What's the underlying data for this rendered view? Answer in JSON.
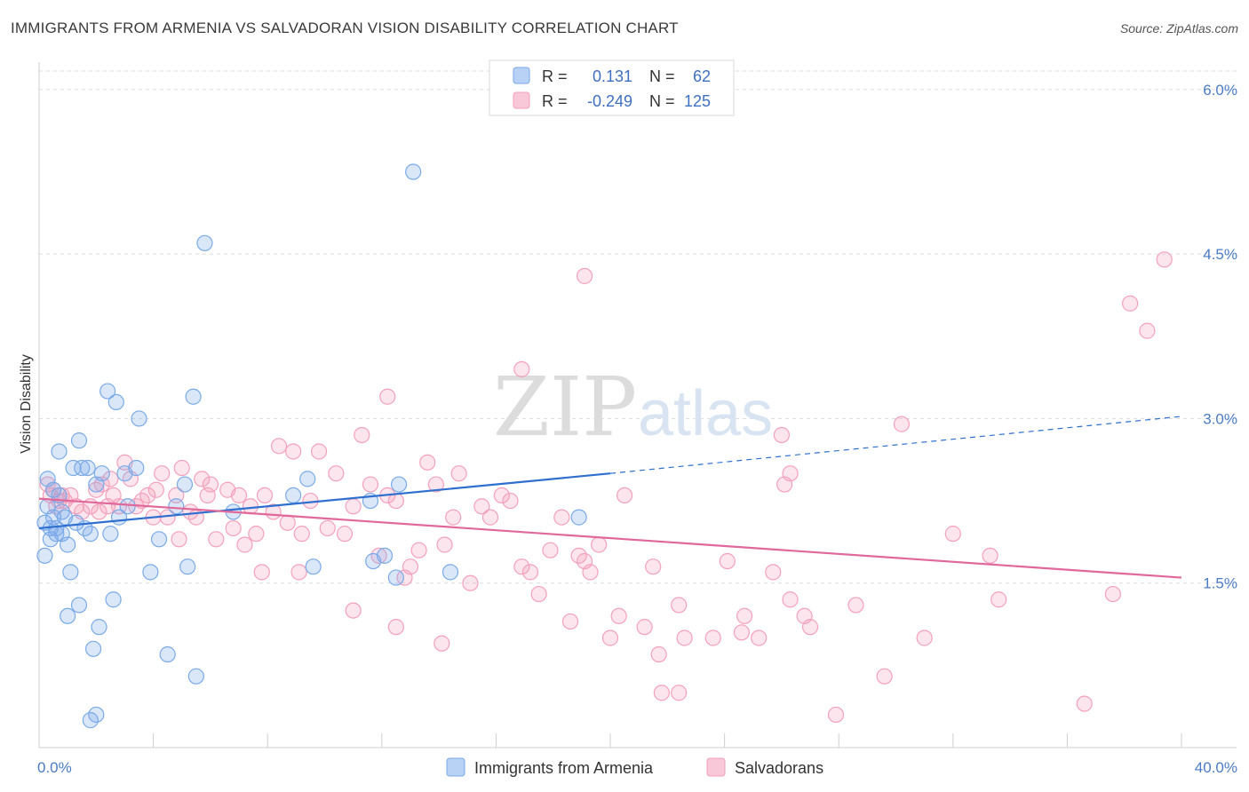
{
  "title": "IMMIGRANTS FROM ARMENIA VS SALVADORAN VISION DISABILITY CORRELATION CHART",
  "source": "Source: ZipAtlas.com",
  "watermark": {
    "part1": "ZIP",
    "part2": "atlas"
  },
  "chart_data": {
    "type": "scatter",
    "title": "IMMIGRANTS FROM ARMENIA VS SALVADORAN VISION DISABILITY CORRELATION CHART",
    "xlabel": "",
    "ylabel": "Vision Disability",
    "xlim": [
      0,
      40
    ],
    "ylim": [
      0,
      6.25
    ],
    "x_tick_labels": [
      "0.0%",
      "40.0%"
    ],
    "y_ticks": [
      1.5,
      3.0,
      4.5,
      6.0
    ],
    "y_tick_labels": [
      "1.5%",
      "3.0%",
      "4.5%",
      "6.0%"
    ],
    "grid": "horizontal dashed",
    "legend_placement": "top-center",
    "stats": [
      {
        "r_label": "R =",
        "r": "0.131",
        "n_label": "N =",
        "n": "62"
      },
      {
        "r_label": "R =",
        "r": "-0.249",
        "n_label": "N =",
        "n": "125"
      }
    ],
    "series": [
      {
        "name": "Immigrants from Armenia",
        "color": "#7aaae8",
        "line_color": "#2f6fcf",
        "trend": {
          "x0": 0,
          "y0": 2.0,
          "x1": 20,
          "y1": 2.5,
          "dash_to_x": 40,
          "dash_to_y": 3.02
        },
        "points": [
          [
            0.2,
            1.75
          ],
          [
            0.2,
            2.05
          ],
          [
            0.3,
            2.2
          ],
          [
            0.3,
            2.45
          ],
          [
            0.4,
            2.0
          ],
          [
            0.4,
            1.9
          ],
          [
            0.5,
            2.35
          ],
          [
            0.5,
            2.1
          ],
          [
            0.6,
            2.0
          ],
          [
            0.6,
            1.95
          ],
          [
            0.7,
            2.7
          ],
          [
            0.7,
            2.3
          ],
          [
            0.8,
            1.95
          ],
          [
            0.8,
            2.15
          ],
          [
            0.9,
            2.1
          ],
          [
            1.0,
            1.85
          ],
          [
            1.1,
            1.6
          ],
          [
            1.2,
            2.55
          ],
          [
            1.3,
            2.05
          ],
          [
            1.4,
            2.8
          ],
          [
            1.5,
            2.55
          ],
          [
            1.6,
            2.0
          ],
          [
            1.7,
            2.55
          ],
          [
            1.8,
            1.95
          ],
          [
            1.9,
            0.9
          ],
          [
            2.0,
            2.4
          ],
          [
            2.1,
            1.1
          ],
          [
            2.2,
            2.5
          ],
          [
            2.4,
            3.25
          ],
          [
            2.5,
            1.95
          ],
          [
            2.6,
            1.35
          ],
          [
            2.7,
            3.15
          ],
          [
            2.8,
            2.1
          ],
          [
            3.0,
            2.5
          ],
          [
            3.1,
            2.2
          ],
          [
            3.4,
            2.55
          ],
          [
            3.5,
            3.0
          ],
          [
            3.9,
            1.6
          ],
          [
            4.2,
            1.9
          ],
          [
            4.5,
            0.85
          ],
          [
            4.8,
            2.2
          ],
          [
            5.1,
            2.4
          ],
          [
            5.2,
            1.65
          ],
          [
            5.4,
            3.2
          ],
          [
            5.5,
            0.65
          ],
          [
            5.8,
            4.6
          ],
          [
            6.8,
            2.15
          ],
          [
            8.9,
            2.3
          ],
          [
            9.4,
            2.45
          ],
          [
            9.6,
            1.65
          ],
          [
            11.6,
            2.25
          ],
          [
            11.7,
            1.7
          ],
          [
            12.1,
            1.75
          ],
          [
            12.5,
            1.55
          ],
          [
            12.6,
            2.4
          ],
          [
            13.1,
            5.25
          ],
          [
            14.4,
            1.6
          ],
          [
            18.9,
            2.1
          ],
          [
            1.8,
            0.25
          ],
          [
            2.0,
            0.3
          ],
          [
            1.0,
            1.2
          ],
          [
            1.4,
            1.3
          ]
        ]
      },
      {
        "name": "Salvadorans",
        "color": "#f4a0bc",
        "line_color": "#e0689a",
        "trend": {
          "x0": 0,
          "y0": 2.27,
          "x1": 40,
          "y1": 1.55
        },
        "points": [
          [
            0.3,
            2.4
          ],
          [
            0.4,
            2.3
          ],
          [
            0.5,
            2.35
          ],
          [
            0.6,
            2.2
          ],
          [
            0.7,
            2.25
          ],
          [
            0.8,
            2.3
          ],
          [
            0.9,
            2.25
          ],
          [
            1.1,
            2.3
          ],
          [
            1.3,
            2.2
          ],
          [
            1.5,
            2.15
          ],
          [
            1.8,
            2.2
          ],
          [
            2.0,
            2.35
          ],
          [
            2.1,
            2.15
          ],
          [
            2.2,
            2.4
          ],
          [
            2.4,
            2.2
          ],
          [
            2.5,
            2.45
          ],
          [
            2.6,
            2.3
          ],
          [
            2.8,
            2.2
          ],
          [
            3.0,
            2.6
          ],
          [
            3.2,
            2.45
          ],
          [
            3.4,
            2.2
          ],
          [
            3.6,
            2.25
          ],
          [
            3.8,
            2.3
          ],
          [
            4.0,
            2.1
          ],
          [
            4.1,
            2.35
          ],
          [
            4.3,
            2.5
          ],
          [
            4.5,
            2.1
          ],
          [
            4.8,
            2.3
          ],
          [
            4.9,
            1.9
          ],
          [
            5.0,
            2.55
          ],
          [
            5.3,
            2.15
          ],
          [
            5.5,
            2.1
          ],
          [
            5.7,
            2.45
          ],
          [
            5.9,
            2.3
          ],
          [
            6.0,
            2.4
          ],
          [
            6.2,
            1.9
          ],
          [
            6.6,
            2.35
          ],
          [
            6.8,
            2.0
          ],
          [
            7.0,
            2.3
          ],
          [
            7.2,
            1.85
          ],
          [
            7.4,
            2.2
          ],
          [
            7.6,
            1.95
          ],
          [
            7.9,
            2.3
          ],
          [
            8.2,
            2.15
          ],
          [
            8.4,
            2.75
          ],
          [
            8.7,
            2.05
          ],
          [
            8.9,
            2.7
          ],
          [
            9.2,
            1.95
          ],
          [
            9.5,
            2.25
          ],
          [
            9.8,
            2.7
          ],
          [
            10.1,
            2.0
          ],
          [
            10.4,
            2.5
          ],
          [
            10.7,
            1.95
          ],
          [
            11.0,
            2.2
          ],
          [
            11.3,
            2.85
          ],
          [
            11.6,
            2.4
          ],
          [
            11.9,
            1.75
          ],
          [
            12.2,
            2.3
          ],
          [
            12.5,
            2.25
          ],
          [
            12.8,
            1.55
          ],
          [
            13.0,
            1.65
          ],
          [
            13.3,
            1.8
          ],
          [
            13.6,
            2.6
          ],
          [
            13.9,
            2.4
          ],
          [
            14.2,
            1.85
          ],
          [
            14.5,
            2.1
          ],
          [
            14.7,
            2.5
          ],
          [
            15.1,
            1.5
          ],
          [
            15.5,
            2.2
          ],
          [
            15.8,
            2.1
          ],
          [
            16.2,
            2.3
          ],
          [
            16.5,
            2.25
          ],
          [
            16.9,
            1.65
          ],
          [
            17.2,
            1.6
          ],
          [
            17.5,
            1.4
          ],
          [
            17.9,
            1.8
          ],
          [
            18.3,
            2.1
          ],
          [
            18.6,
            1.15
          ],
          [
            18.9,
            1.75
          ],
          [
            19.1,
            1.7
          ],
          [
            19.3,
            1.6
          ],
          [
            19.6,
            1.85
          ],
          [
            20.0,
            1.0
          ],
          [
            20.5,
            2.3
          ],
          [
            21.2,
            1.1
          ],
          [
            21.5,
            1.65
          ],
          [
            22.4,
            1.3
          ],
          [
            22.6,
            1.0
          ],
          [
            23.6,
            1.0
          ],
          [
            24.1,
            1.7
          ],
          [
            24.7,
            1.2
          ],
          [
            25.2,
            1.0
          ],
          [
            25.7,
            1.6
          ],
          [
            26.3,
            1.35
          ],
          [
            26.8,
            1.2
          ],
          [
            27.0,
            1.1
          ],
          [
            28.6,
            1.3
          ],
          [
            29.6,
            0.65
          ],
          [
            30.2,
            2.95
          ],
          [
            31.0,
            1.0
          ],
          [
            32.0,
            1.95
          ],
          [
            33.3,
            1.75
          ],
          [
            33.6,
            1.35
          ],
          [
            36.6,
            0.4
          ],
          [
            37.6,
            1.4
          ],
          [
            38.2,
            4.05
          ],
          [
            38.8,
            3.8
          ],
          [
            39.4,
            4.45
          ],
          [
            12.2,
            3.2
          ],
          [
            16.9,
            3.45
          ],
          [
            19.1,
            4.3
          ],
          [
            26.0,
            2.85
          ],
          [
            26.3,
            2.5
          ],
          [
            26.1,
            2.4
          ],
          [
            7.8,
            1.6
          ],
          [
            11.0,
            1.25
          ],
          [
            9.1,
            1.6
          ],
          [
            12.5,
            1.1
          ],
          [
            14.1,
            0.95
          ],
          [
            21.8,
            0.5
          ],
          [
            22.4,
            0.5
          ],
          [
            27.9,
            0.3
          ],
          [
            20.3,
            1.2
          ],
          [
            24.6,
            1.05
          ],
          [
            21.7,
            0.85
          ]
        ]
      }
    ]
  },
  "bottom_legend": [
    {
      "label": "Immigrants from Armenia",
      "color": "#b8d2f5",
      "border": "#7aaae8"
    },
    {
      "label": "Salvadorans",
      "color": "#f9c8d8",
      "border": "#f4a0bc"
    }
  ]
}
